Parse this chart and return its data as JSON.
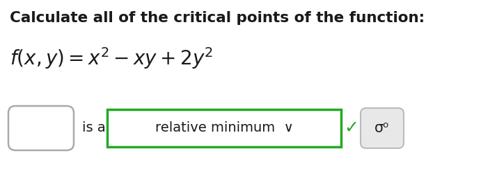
{
  "background_color": "#ffffff",
  "title_text": "Calculate all of the critical points of the function:",
  "title_fontsize": 15.5,
  "title_color": "#1a1a1a",
  "title_font": "DejaVu Sans",
  "formula_text": "$f(x, y) = x^2 - xy + 2y^2$",
  "formula_fontsize": 20,
  "formula_color": "#1a1a1a",
  "input_box_color": "#aaaaaa",
  "input_box_facecolor": "#ffffff",
  "is_a_text": "is a",
  "is_a_fontsize": 14,
  "dropdown_text": "relative minimum  ∨",
  "dropdown_box_color": "#22aa22",
  "dropdown_text_color": "#1a1a1a",
  "dropdown_fontsize": 14,
  "checkmark_text": "✓",
  "checkmark_fontsize": 18,
  "checkmark_color": "#22aa22",
  "reset_box_color": "#bbbbbb",
  "reset_box_facecolor": "#e8e8e8",
  "reset_symbol": "σᵒ",
  "reset_fontsize": 15,
  "reset_color": "#222222"
}
